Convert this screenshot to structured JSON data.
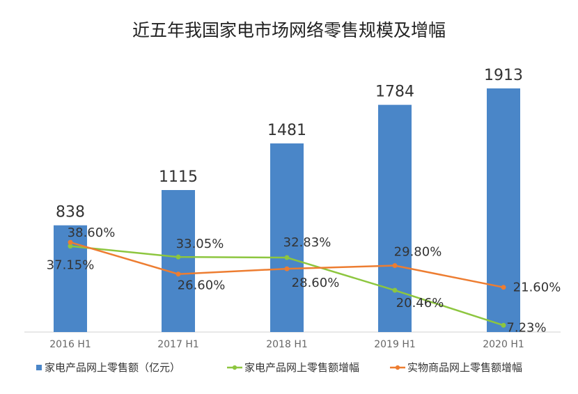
{
  "chart_data": {
    "type": "bar",
    "title": "近五年我国家电市场网络零售规模及增幅",
    "categories": [
      "2016 H1",
      "2017 H1",
      "2018 H1",
      "2019 H1",
      "2020 H1"
    ],
    "series": [
      {
        "name": "家电产品网上零售额（亿元）",
        "type": "bar",
        "color": "#4a86c8",
        "values": [
          838,
          1115,
          1481,
          1784,
          1913
        ],
        "labels": [
          "838",
          "1115",
          "1481",
          "1784",
          "1913"
        ]
      },
      {
        "name": "家电产品网上零售额增幅",
        "type": "line",
        "color": "#8dc63f",
        "values": [
          37.15,
          33.05,
          32.83,
          20.46,
          7.23
        ],
        "labels": [
          "37.15%",
          "33.05%",
          "32.83%",
          "20.46%",
          "7.23%"
        ]
      },
      {
        "name": "实物商品网上零售额增幅",
        "type": "line",
        "color": "#ed7d31",
        "values": [
          38.6,
          26.6,
          28.6,
          29.8,
          21.6
        ],
        "labels": [
          "38.60%",
          "26.60%",
          "28.60%",
          "29.80%",
          "21.60%"
        ]
      }
    ],
    "ylim": [
      0,
      2000
    ],
    "grid": false,
    "legend": "bottom"
  }
}
